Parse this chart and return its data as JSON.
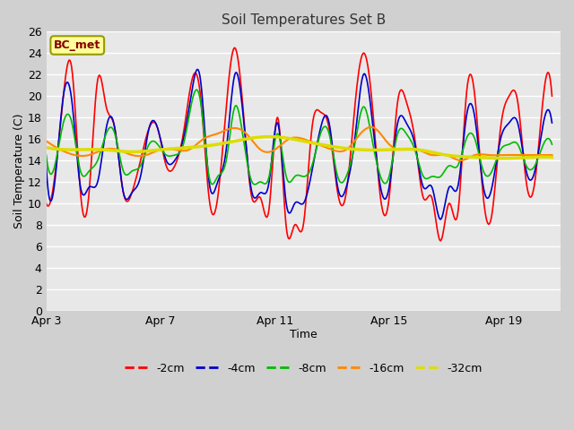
{
  "title": "Soil Temperatures Set B",
  "xlabel": "Time",
  "ylabel": "Soil Temperature (C)",
  "ylim": [
    0,
    26
  ],
  "yticks": [
    0,
    2,
    4,
    6,
    8,
    10,
    12,
    14,
    16,
    18,
    20,
    22,
    24,
    26
  ],
  "annotation_text": "BC_met",
  "annotation_bg": "#ffff99",
  "annotation_border": "#999900",
  "series_colors": {
    "-2cm": "#ff0000",
    "-4cm": "#0000cc",
    "-8cm": "#00bb00",
    "-16cm": "#ff8800",
    "-32cm": "#dddd00"
  },
  "x_tick_days": [
    3,
    7,
    11,
    15,
    19
  ],
  "x_tick_labels": [
    "Apr 3",
    "Apr 7",
    "Apr 11",
    "Apr 15",
    "Apr 19"
  ],
  "figsize": [
    6.4,
    4.8
  ],
  "dpi": 100,
  "fig_bg": "#d0d0d0",
  "ax_bg": "#e8e8e8",
  "grid_color": "#ffffff",
  "title_color": "#333333",
  "key_2cm": [
    3.0,
    10.0,
    3.3,
    12.5,
    3.6,
    20.0,
    3.9,
    22.5,
    4.2,
    11.0,
    4.5,
    11.0,
    4.8,
    21.5,
    5.1,
    19.0,
    5.4,
    17.0,
    5.7,
    11.0,
    6.0,
    11.0,
    6.3,
    14.0,
    6.6,
    17.0,
    6.9,
    17.0,
    7.2,
    13.5,
    7.5,
    13.5,
    7.8,
    16.5,
    8.1,
    21.5,
    8.4,
    20.0,
    8.7,
    10.5,
    9.0,
    10.5,
    9.3,
    19.0,
    9.6,
    24.5,
    9.9,
    18.5,
    10.2,
    10.5,
    10.5,
    10.5,
    10.8,
    9.5,
    11.1,
    18.0,
    11.4,
    7.8,
    11.7,
    8.0,
    12.0,
    8.0,
    12.3,
    17.0,
    12.6,
    18.5,
    12.9,
    17.0,
    13.2,
    11.0,
    13.5,
    11.0,
    13.8,
    19.0,
    14.1,
    24.0,
    14.4,
    19.5,
    14.7,
    10.5,
    15.0,
    10.5,
    15.3,
    19.5,
    15.6,
    19.5,
    15.9,
    16.0,
    16.2,
    10.5,
    16.5,
    10.5,
    16.8,
    6.5,
    17.1,
    10.0,
    17.4,
    9.0,
    17.7,
    20.0,
    18.0,
    20.0,
    18.3,
    10.5,
    18.6,
    9.0,
    18.9,
    17.0,
    19.2,
    20.0,
    19.5,
    19.5,
    19.8,
    12.0,
    20.1,
    12.0,
    20.4,
    20.0,
    20.7,
    20.0
  ],
  "key_4cm": [
    3.0,
    13.5,
    3.3,
    12.0,
    3.6,
    20.0,
    3.9,
    19.5,
    4.2,
    11.5,
    4.5,
    11.5,
    4.8,
    12.0,
    5.1,
    17.0,
    5.4,
    17.0,
    5.7,
    11.0,
    6.0,
    11.0,
    6.3,
    12.5,
    6.6,
    17.0,
    6.9,
    17.0,
    7.2,
    14.0,
    7.5,
    14.0,
    7.8,
    16.0,
    8.1,
    20.5,
    8.4,
    21.5,
    8.7,
    12.0,
    9.0,
    12.0,
    9.3,
    15.0,
    9.6,
    22.0,
    9.9,
    18.0,
    10.2,
    11.0,
    10.5,
    11.0,
    10.8,
    12.0,
    11.1,
    17.5,
    11.4,
    10.0,
    11.7,
    10.0,
    12.0,
    10.0,
    12.3,
    13.0,
    12.6,
    17.0,
    12.9,
    17.5,
    13.2,
    11.5,
    13.5,
    11.5,
    13.8,
    16.0,
    14.1,
    22.0,
    14.4,
    18.0,
    14.7,
    11.5,
    15.0,
    11.5,
    15.3,
    17.5,
    15.6,
    17.5,
    15.9,
    15.5,
    16.2,
    11.5,
    16.5,
    11.5,
    16.8,
    8.5,
    17.1,
    11.5,
    17.4,
    11.5,
    17.7,
    18.0,
    18.0,
    18.0,
    18.3,
    11.5,
    18.6,
    11.5,
    18.9,
    16.0,
    19.2,
    17.5,
    19.5,
    17.5,
    19.8,
    13.0,
    20.1,
    13.0,
    20.4,
    17.5,
    20.7,
    17.5
  ],
  "key_8cm": [
    3.0,
    14.5,
    3.3,
    13.5,
    3.6,
    17.5,
    3.9,
    17.5,
    4.2,
    13.0,
    4.5,
    13.0,
    4.8,
    14.0,
    5.1,
    16.5,
    5.4,
    16.5,
    5.7,
    13.0,
    6.0,
    13.0,
    6.3,
    13.5,
    6.6,
    15.5,
    6.9,
    15.5,
    7.2,
    14.5,
    7.5,
    14.5,
    7.8,
    15.5,
    8.1,
    19.5,
    8.4,
    19.5,
    8.7,
    12.5,
    9.0,
    12.5,
    9.3,
    14.0,
    9.6,
    19.0,
    9.9,
    16.0,
    10.2,
    12.0,
    10.5,
    12.0,
    10.8,
    12.5,
    11.1,
    16.5,
    11.4,
    12.5,
    11.7,
    12.5,
    12.0,
    12.5,
    12.3,
    13.5,
    12.6,
    16.5,
    12.9,
    16.5,
    13.2,
    12.5,
    13.5,
    12.5,
    13.8,
    15.5,
    14.1,
    19.0,
    14.4,
    16.0,
    14.7,
    12.5,
    15.0,
    12.5,
    15.3,
    16.5,
    15.6,
    16.5,
    15.9,
    15.0,
    16.2,
    12.5,
    16.5,
    12.5,
    16.8,
    12.5,
    17.1,
    13.5,
    17.4,
    13.5,
    17.7,
    16.0,
    18.0,
    16.0,
    18.3,
    13.0,
    18.6,
    13.0,
    18.9,
    15.0,
    19.2,
    15.5,
    19.5,
    15.5,
    19.8,
    13.5,
    20.1,
    13.5,
    20.4,
    15.5,
    20.7,
    15.5
  ],
  "key_16cm": [
    3.0,
    15.8,
    3.5,
    15.0,
    4.0,
    14.5,
    4.5,
    14.5,
    5.0,
    15.0,
    5.5,
    15.0,
    6.0,
    14.5,
    6.5,
    14.5,
    7.0,
    15.0,
    7.5,
    15.0,
    8.0,
    15.0,
    8.5,
    16.0,
    9.0,
    16.5,
    9.5,
    17.0,
    10.0,
    16.5,
    10.5,
    15.0,
    11.0,
    15.0,
    11.5,
    16.0,
    12.0,
    16.0,
    12.5,
    15.5,
    13.0,
    15.0,
    13.5,
    15.0,
    14.0,
    16.5,
    14.5,
    17.0,
    15.0,
    15.5,
    15.5,
    15.0,
    16.0,
    15.0,
    16.5,
    14.5,
    17.0,
    14.5,
    17.5,
    14.0,
    18.0,
    14.5,
    18.5,
    14.5,
    19.0,
    14.5,
    19.5,
    14.5,
    20.0,
    14.5,
    20.7,
    14.5
  ],
  "key_32cm": [
    3.0,
    15.2,
    4.0,
    15.0,
    5.0,
    15.0,
    6.0,
    14.8,
    7.0,
    15.0,
    8.0,
    15.2,
    9.0,
    15.5,
    10.0,
    16.0,
    11.0,
    16.2,
    12.0,
    15.8,
    13.0,
    15.3,
    14.0,
    15.0,
    15.0,
    15.0,
    16.0,
    15.0,
    17.0,
    14.5,
    18.0,
    14.3,
    19.0,
    14.2,
    20.0,
    14.3,
    20.7,
    14.3
  ]
}
